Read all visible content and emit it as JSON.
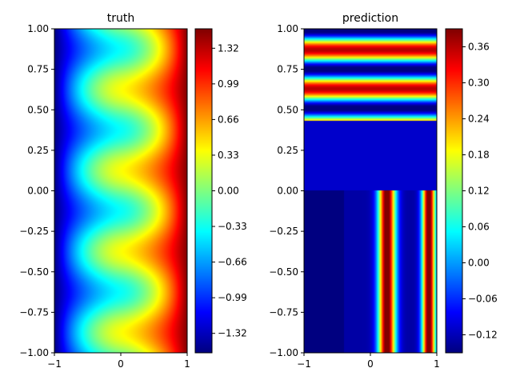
{
  "chart_data": [
    {
      "type": "heatmap",
      "title": "truth",
      "xlabel": "",
      "ylabel": "",
      "xlim": [
        -1,
        1
      ],
      "ylim": [
        -1,
        1
      ],
      "x_ticks": [
        "−1",
        "0",
        "1"
      ],
      "y_ticks": [
        "−1.00",
        "−0.75",
        "−0.50",
        "−0.25",
        "0.00",
        "0.25",
        "0.50",
        "0.75",
        "1.00"
      ],
      "colormap": "jet",
      "colorbar": {
        "range": [
          -1.5,
          1.5
        ],
        "ticks": [
          "−1.32",
          "−0.99",
          "−0.66",
          "−0.33",
          "0.00",
          "0.33",
          "0.66",
          "0.99",
          "1.32"
        ]
      },
      "description_field": "u(x,y) ~ x^2 + 0.5*cos(2*pi*(y+0.5)*2) pattern; min at x=-1 (about -1.5), max at x=1 (about 1.5)"
    },
    {
      "type": "heatmap",
      "title": "prediction",
      "xlabel": "",
      "ylabel": "",
      "xlim": [
        -1,
        1
      ],
      "ylim": [
        -1,
        1
      ],
      "x_ticks": [
        "−1",
        "0",
        "1"
      ],
      "y_ticks": [
        "−1.00",
        "−0.75",
        "−0.50",
        "−0.25",
        "0.00",
        "0.25",
        "0.50",
        "0.75",
        "1.00"
      ],
      "colormap": "jet",
      "colorbar": {
        "range": [
          -0.15,
          0.39
        ],
        "ticks": [
          "−0.12",
          "−0.06",
          "0.00",
          "0.06",
          "0.12",
          "0.18",
          "0.24",
          "0.30",
          "0.36"
        ]
      }
    }
  ]
}
